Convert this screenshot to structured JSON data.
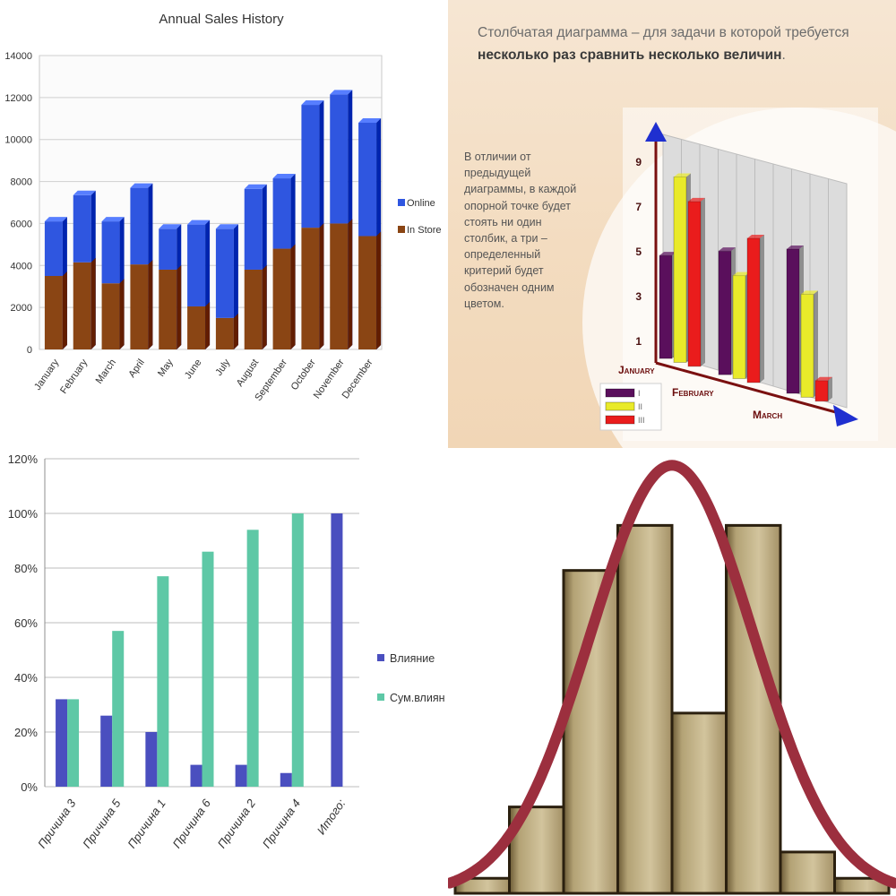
{
  "charts": {
    "sales": {
      "title": "Annual Sales History",
      "legend": [
        "Online",
        "In Store"
      ],
      "colors": {
        "online": "#2f56e0",
        "instore": "#8a4514"
      },
      "y_ticks": [
        "0",
        "2000",
        "4000",
        "6000",
        "8000",
        "10000",
        "12000",
        "14000"
      ]
    },
    "pareto": {
      "legend": [
        "Влияние",
        "Сум.влиян"
      ],
      "y_ticks": [
        "0%",
        "20%",
        "40%",
        "60%",
        "80%",
        "100%",
        "120%"
      ],
      "colors": {
        "impact": "#4a4fbf",
        "cumulative": "#5ec8a6"
      }
    },
    "three_d": {
      "heading_normal": "Столбчатая диаграмма – для задачи в которой требуется",
      "heading_bold": "несколько раз сравнить несколько величин",
      "heading_end": ".",
      "body_text": "В отличии от предыдущей диаграммы, в каждой опорной точке будет стоять ни один столбик, а три – определенный критерий будет обозначен одним цветом.",
      "y_ticks": [
        "1",
        "3",
        "5",
        "7",
        "9"
      ],
      "month_labels": [
        "January",
        "February",
        "March"
      ],
      "legend": [
        "I",
        "II",
        "III"
      ],
      "colors": {
        "s1": "#5a0f5c",
        "s2": "#e9ea2a",
        "s3": "#ea1c1c",
        "axis": "#7a1010",
        "arrow": "#1f2fd0"
      }
    },
    "hist": {
      "colors": {
        "bar": "#b3a275",
        "bar_dark": "#6b5a35",
        "outline": "#2b200f",
        "curve": "#9c2f3e"
      }
    }
  },
  "chart_data": [
    {
      "type": "bar",
      "title": "Annual Sales History",
      "categories": [
        "January",
        "February",
        "March",
        "April",
        "May",
        "June",
        "July",
        "August",
        "September",
        "October",
        "November",
        "December"
      ],
      "series": [
        {
          "name": "In Store",
          "values": [
            3500,
            4150,
            3150,
            4050,
            3800,
            2050,
            1500,
            3800,
            4800,
            5800,
            6000,
            5400
          ]
        },
        {
          "name": "Online",
          "values": [
            2600,
            3200,
            2950,
            3650,
            1950,
            3900,
            4250,
            3850,
            3350,
            5850,
            6150,
            5400
          ]
        }
      ],
      "stacked": true,
      "ylim": [
        0,
        14000
      ],
      "grid": true,
      "legend": "right"
    },
    {
      "type": "bar",
      "categories": [
        "January",
        "February",
        "March"
      ],
      "series": [
        {
          "name": "I",
          "values": [
            5,
            6,
            7
          ]
        },
        {
          "name": "II",
          "values": [
            9,
            5,
            5
          ]
        },
        {
          "name": "III",
          "values": [
            8,
            7,
            1
          ]
        }
      ],
      "ylim": [
        0,
        10
      ],
      "legend": "bottom-left"
    },
    {
      "type": "bar",
      "categories": [
        "Причина 3",
        "Причина 5",
        "Причина 1",
        "Причина 6",
        "Причина 2",
        "Причина 4",
        "Итого:"
      ],
      "series": [
        {
          "name": "Влияние",
          "values": [
            32,
            26,
            20,
            8,
            8,
            5,
            100
          ]
        },
        {
          "name": "Сум.влиян",
          "values": [
            32,
            57,
            77,
            86,
            94,
            100,
            null
          ]
        }
      ],
      "ylim": [
        0,
        120
      ],
      "grid": true,
      "legend": "right"
    },
    {
      "type": "bar",
      "values": [
        4,
        23,
        86,
        98,
        48,
        98,
        11,
        4
      ],
      "curve": "normal",
      "ylim": [
        0,
        100
      ]
    }
  ]
}
